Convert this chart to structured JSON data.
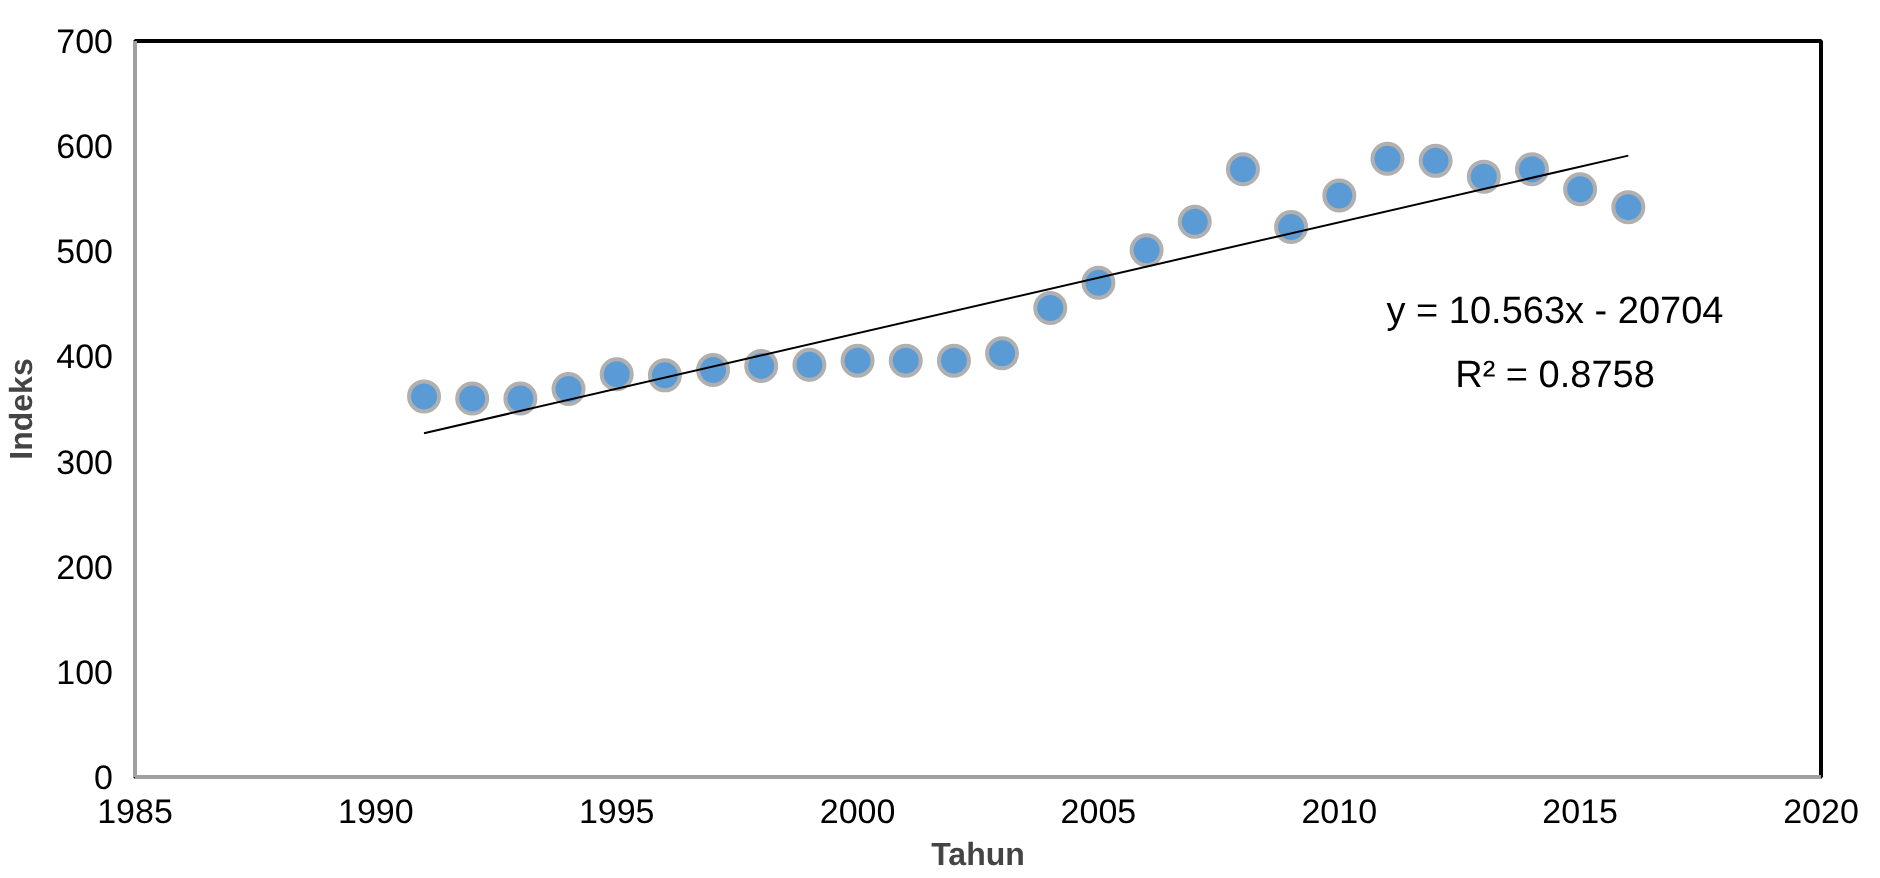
{
  "chart_data": {
    "type": "scatter",
    "xlabel": "Tahun",
    "ylabel": "Indeks",
    "x": [
      1991,
      1992,
      1993,
      1994,
      1995,
      1996,
      1997,
      1998,
      1999,
      2000,
      2001,
      2002,
      2003,
      2004,
      2005,
      2006,
      2007,
      2008,
      2009,
      2010,
      2011,
      2012,
      2013,
      2014,
      2015,
      2016
    ],
    "series": [
      {
        "color": "#5b9bd5",
        "marker": "circle",
        "values": [
          362,
          360,
          360,
          369,
          383,
          382,
          387,
          391,
          392,
          396,
          396,
          396,
          403,
          446,
          470,
          501,
          528,
          578,
          523,
          553,
          588,
          586,
          571,
          578,
          559,
          542
        ]
      },
      {
        "type": "line",
        "color": "#000000",
        "line_style": "solid",
        "marker": "none",
        "x": [
          1991,
          2016
        ],
        "values": [
          327,
          591
        ]
      }
    ],
    "annotations": [
      "y = 10.563x - 20704",
      "R² = 0.8758"
    ],
    "xlim": [
      1985,
      2020
    ],
    "xticks": [
      1985,
      1990,
      1995,
      2000,
      2005,
      2010,
      2015,
      2020
    ],
    "ylim": [
      0,
      700
    ],
    "yticks": [
      0,
      100,
      200,
      300,
      400,
      500,
      600,
      700
    ],
    "grid": false
  }
}
